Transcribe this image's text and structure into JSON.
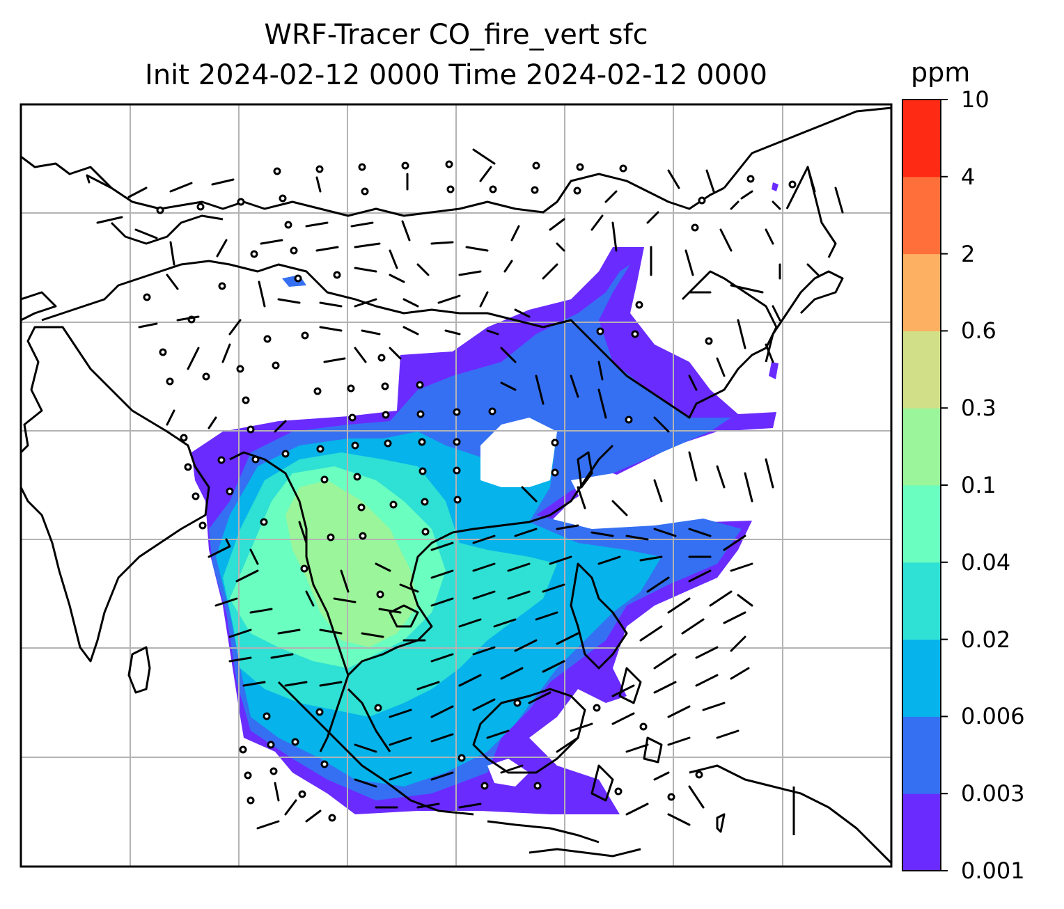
{
  "title_line1": "WRF-Tracer CO_fire_vert sfc",
  "title_line2": "Init 2024-02-12 0000 Time 2024-02-12 0000",
  "colorbar": {
    "unit": "ppm",
    "levels": [
      "0.001",
      "0.003",
      "0.006",
      "0.02",
      "0.04",
      "0.1",
      "0.3",
      "0.6",
      "2",
      "4",
      "10"
    ],
    "colors": [
      "#6a2bff",
      "#3570f2",
      "#06b3ea",
      "#2fe0d4",
      "#6afec0",
      "#9bf59a",
      "#d1e088",
      "#fdaf62",
      "#ff6f3a",
      "#ff2a14"
    ]
  },
  "map": {
    "graticule": "lat/lon grid lines",
    "overlays": [
      "coastlines",
      "country borders",
      "wind barbs",
      "calm-wind circles"
    ]
  }
}
